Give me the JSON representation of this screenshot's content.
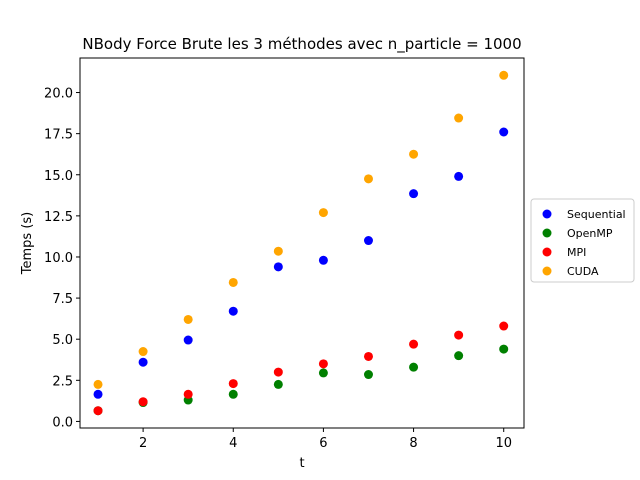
{
  "chart_data": {
    "type": "scatter",
    "title": "NBody Force Brute les 3 méthodes avec n_particle = 1000",
    "xlabel": "t",
    "ylabel": "Temps (s)",
    "xlim": [
      0.6,
      10.45
    ],
    "ylim": [
      -0.4,
      22.1
    ],
    "xticks": [
      2,
      4,
      6,
      8,
      10
    ],
    "yticks": [
      0.0,
      2.5,
      5.0,
      7.5,
      10.0,
      12.5,
      15.0,
      17.5,
      20.0
    ],
    "ytick_labels": [
      "0.0",
      "2.5",
      "5.0",
      "7.5",
      "10.0",
      "12.5",
      "15.0",
      "17.5",
      "20.0"
    ],
    "grid": false,
    "legend_position": "center-right, outside plot",
    "x": [
      1,
      2,
      3,
      4,
      5,
      6,
      7,
      8,
      9,
      10
    ],
    "series": [
      {
        "name": "Sequential",
        "color": "#0000ff",
        "values": [
          1.65,
          3.6,
          4.95,
          6.7,
          9.4,
          9.8,
          11.0,
          13.85,
          14.9,
          17.6
        ]
      },
      {
        "name": "OpenMP",
        "color": "#008000",
        "values": [
          0.65,
          1.15,
          1.3,
          1.65,
          2.25,
          2.95,
          2.85,
          3.3,
          4.0,
          4.4
        ]
      },
      {
        "name": "MPI",
        "color": "#ff0000",
        "values": [
          0.65,
          1.2,
          1.65,
          2.3,
          3.0,
          3.5,
          3.95,
          4.7,
          5.25,
          5.8
        ]
      },
      {
        "name": "CUDA",
        "color": "#ffa500",
        "values": [
          2.25,
          4.25,
          6.2,
          8.45,
          10.35,
          12.7,
          14.75,
          16.25,
          18.45,
          21.05
        ]
      }
    ]
  }
}
